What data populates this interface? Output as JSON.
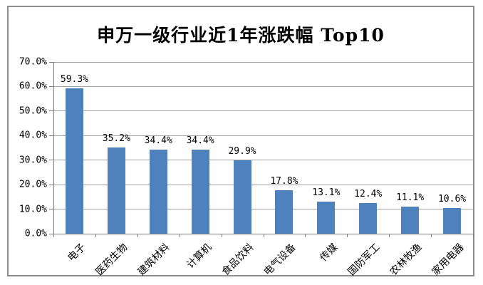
{
  "chart_data": {
    "type": "bar",
    "title": "申万一级行业近1年涨跌幅 Top10",
    "categories": [
      "电子",
      "医药生物",
      "建筑材料",
      "计算机",
      "食品饮料",
      "电气设备",
      "传媒",
      "国防军工",
      "农林牧渔",
      "家用电器"
    ],
    "values": [
      59.3,
      35.2,
      34.4,
      34.4,
      29.9,
      17.8,
      13.1,
      12.4,
      11.1,
      10.6
    ],
    "value_labels": [
      "59.3%",
      "35.2%",
      "34.4%",
      "34.4%",
      "29.9%",
      "17.8%",
      "13.1%",
      "12.4%",
      "11.1%",
      "10.6%"
    ],
    "ytick_labels": [
      "0.0%",
      "10.0%",
      "20.0%",
      "30.0%",
      "40.0%",
      "50.0%",
      "60.0%",
      "70.0%"
    ],
    "ylim": [
      0,
      70
    ],
    "ytick_step": 10,
    "xlabel": "",
    "ylabel": "",
    "grid": true,
    "legend_position": "none",
    "bar_color": "#4F81BD",
    "gridline_color": "#a3a3a3",
    "axis_color": "#7f7f7f",
    "frame_border_color": "#8c8c8c"
  }
}
